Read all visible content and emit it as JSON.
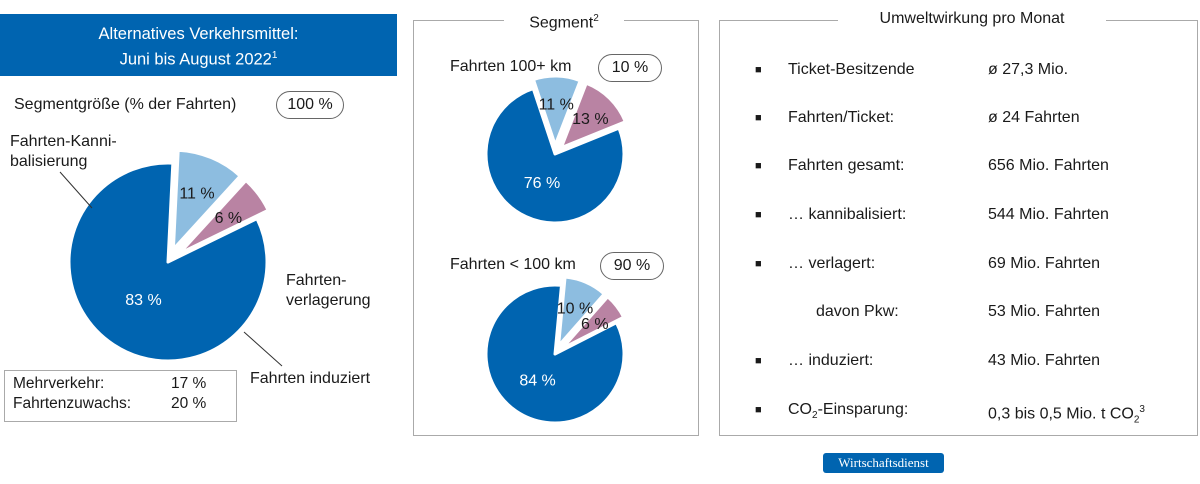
{
  "header": {
    "line1": "Alternatives Verkehrsmittel:",
    "line2": "Juni bis August 2022",
    "line2_sup": "1"
  },
  "segment_size": {
    "label": "Segmentgröße (% der Fahrten)",
    "value": "100 %"
  },
  "main_pie_labels": {
    "kannibalisierung_1": "Fahrten-Kanni-",
    "kannibalisierung_2": "balisierung",
    "verlagerung_1": "Fahrten-",
    "verlagerung_2": "verlagerung",
    "induziert": "Fahrten induziert"
  },
  "legend": {
    "mehrverkehr_label": "Mehrverkehr:",
    "mehrverkehr_value": "17 %",
    "fahrtenzuwachs_label": "Fahrtenzuwachs:",
    "fahrtenzuwachs_value": "20 %"
  },
  "segment_panel": {
    "title": "Segment",
    "title_sup": "2",
    "long_label": "Fahrten 100+ km",
    "long_share": "10 %",
    "short_label": "Fahrten < 100 km",
    "short_share": "90 %"
  },
  "umwelt_panel": {
    "title": "Umweltwirkung pro Monat",
    "rows": [
      {
        "label": "Ticket-Besitzende",
        "value": "ø  27,3 Mio."
      },
      {
        "label": "Fahrten/Ticket:",
        "value": "ø  24 Fahrten"
      },
      {
        "label": "Fahrten gesamt:",
        "value": "656 Mio. Fahrten"
      },
      {
        "label": "… kannibalisiert:",
        "value": "544 Mio. Fahrten"
      },
      {
        "label": "… verlagert:",
        "value": "69 Mio. Fahrten"
      },
      {
        "label": "davon Pkw:",
        "value": "53 Mio. Fahrten"
      },
      {
        "label": "… induziert:",
        "value": "43 Mio. Fahrten"
      },
      {
        "label_pre": "CO",
        "label_sub": "2",
        "label_post": "-Einsparung:",
        "value_pre": "0,3 bis 0,5 Mio. t CO",
        "value_sub": "2",
        "value_sup": "3"
      }
    ]
  },
  "brand": "Wirtschaftsdienst",
  "colors": {
    "dark_blue": "#0064b0",
    "light_blue": "#8dbde0",
    "mauve": "#b983a3"
  },
  "chart_data": [
    {
      "type": "pie",
      "title": "Alternatives Verkehrsmittel: Juni bis August 2022",
      "segment": "Segmentgröße (% der Fahrten): 100 %",
      "slices": [
        {
          "name": "Fahrten-Kannibalisierung",
          "value": 83,
          "label": "83 %",
          "color": "#0064b0"
        },
        {
          "name": "Fahrtenverlagerung",
          "value": 11,
          "label": "11 %",
          "color": "#8dbde0"
        },
        {
          "name": "Fahrten induziert",
          "value": 6,
          "label": "6 %",
          "color": "#b983a3"
        }
      ]
    },
    {
      "type": "pie",
      "segment": "Fahrten 100+ km: 10 %",
      "slices": [
        {
          "value": 76,
          "label": "76 %",
          "color": "#0064b0"
        },
        {
          "value": 11,
          "label": "11 %",
          "color": "#8dbde0"
        },
        {
          "value": 13,
          "label": "13 %",
          "color": "#b983a3"
        }
      ]
    },
    {
      "type": "pie",
      "segment": "Fahrten < 100 km: 90 %",
      "slices": [
        {
          "value": 84,
          "label": "84 %",
          "color": "#0064b0"
        },
        {
          "value": 10,
          "label": "10 %",
          "color": "#8dbde0"
        },
        {
          "value": 6,
          "label": "6 %",
          "color": "#b983a3"
        }
      ]
    }
  ]
}
